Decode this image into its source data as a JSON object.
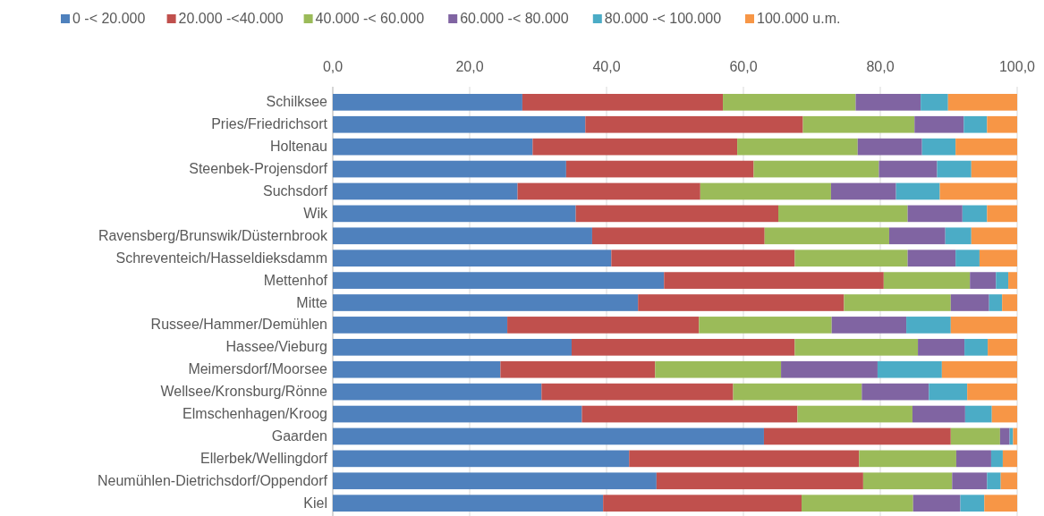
{
  "chart_data": {
    "type": "bar",
    "orientation": "horizontal",
    "stacked": true,
    "categories": [
      "Schilksee",
      "Pries/Friedrichsort",
      "Holtenau",
      "Steenbek-Projensdorf",
      "Suchsdorf",
      "Wik",
      "Ravensberg/Brunswik/Düsternbrook",
      "Schreventeich/Hasseldieksdamm",
      "Mettenhof",
      "Mitte",
      "Russee/Hammer/Demühlen",
      "Hassee/Vieburg",
      "Meimersdorf/Moorsee",
      "Wellsee/Kronsburg/Rönne",
      "Elmschenhagen/Kroog",
      "Gaarden",
      "Ellerbek/Wellingdorf",
      "Neumühlen-Dietrichsdorf/Oppendorf",
      "Kiel"
    ],
    "series": [
      {
        "name": "0 -< 20.000",
        "color": "#4f81bd",
        "values": [
          27.7,
          36.9,
          29.2,
          34.1,
          27.0,
          35.5,
          37.9,
          40.7,
          48.4,
          44.6,
          25.5,
          34.9,
          24.5,
          30.5,
          36.4,
          63.0,
          43.3,
          47.3,
          39.5
        ]
      },
      {
        "name": "20.000 -<40.000",
        "color": "#c0504d",
        "values": [
          29.3,
          31.8,
          29.9,
          27.4,
          26.7,
          29.6,
          25.2,
          26.8,
          32.1,
          30.1,
          28.0,
          32.6,
          22.6,
          28.0,
          31.5,
          27.3,
          33.6,
          30.2,
          29.0
        ]
      },
      {
        "name": "40.000 -< 60.000",
        "color": "#9bbb59",
        "values": [
          19.4,
          16.3,
          17.6,
          18.3,
          19.1,
          18.9,
          18.2,
          16.5,
          12.6,
          15.6,
          19.4,
          18.0,
          18.4,
          18.8,
          16.8,
          7.2,
          14.2,
          13.0,
          16.3
        ]
      },
      {
        "name": "60.000 -< 80.000",
        "color": "#8064a2",
        "values": [
          9.5,
          7.2,
          9.4,
          8.5,
          9.5,
          8.0,
          8.2,
          7.0,
          3.8,
          5.6,
          10.9,
          6.8,
          14.1,
          9.8,
          7.7,
          1.4,
          5.1,
          5.1,
          6.9
        ]
      },
      {
        "name": "80.000 -< 100.000",
        "color": "#4bacc6",
        "values": [
          4.0,
          3.4,
          4.9,
          5.0,
          6.4,
          3.6,
          3.8,
          3.5,
          1.8,
          1.9,
          6.5,
          3.4,
          9.4,
          5.6,
          3.9,
          0.5,
          1.7,
          2.0,
          3.5
        ]
      },
      {
        "name": "100.000 u.m.",
        "color": "#f79646",
        "values": [
          10.1,
          4.4,
          9.0,
          6.7,
          11.3,
          4.4,
          6.7,
          5.5,
          1.3,
          2.2,
          9.7,
          4.3,
          11.0,
          7.3,
          3.7,
          0.6,
          2.1,
          2.4,
          4.8
        ]
      }
    ],
    "xlim": [
      0,
      100
    ],
    "xticks": [
      {
        "value": 0,
        "label": "0,0"
      },
      {
        "value": 20,
        "label": "20,0"
      },
      {
        "value": 40,
        "label": "40,0"
      },
      {
        "value": 60,
        "label": "60,0"
      },
      {
        "value": 80,
        "label": "80,0"
      },
      {
        "value": 100,
        "label": "100,0"
      }
    ],
    "grid": "x",
    "legend": "top"
  }
}
